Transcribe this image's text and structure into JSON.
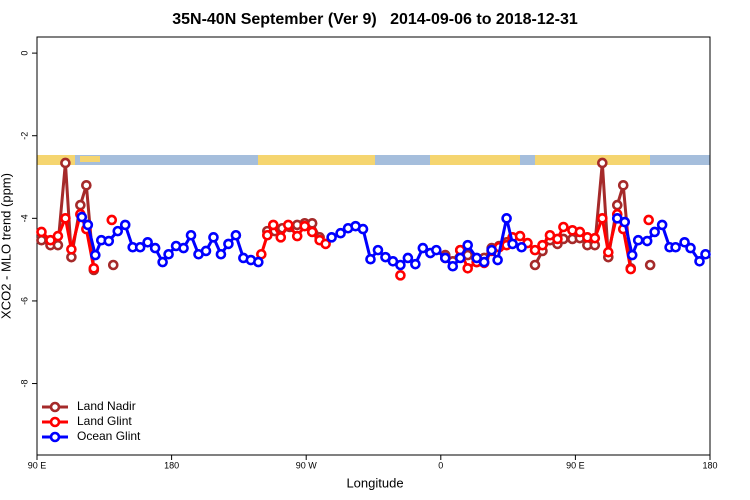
{
  "chart_data": {
    "type": "line",
    "title": "35N-40N September (Ver 9)   2014-09-06 to 2018-12-31",
    "xlabel": "Longitude",
    "ylabel": "XCO2 - MLO trend (ppm)",
    "xlim": [
      90,
      540
    ],
    "xticks": [
      {
        "value": 90,
        "label": "90 E"
      },
      180,
      {
        "value": 270,
        "label": "90 W"
      },
      {
        "value": 360,
        "label": "0"
      },
      {
        "value": 450,
        "label": "90 E"
      },
      {
        "value": 540,
        "label": "180"
      }
    ],
    "ylim": [
      -9.73,
      0.39
    ],
    "yticks": [
      0,
      -2,
      -4,
      -6,
      -8
    ],
    "legend": "lower left",
    "series": [
      {
        "name": "Land Nadir",
        "color": "#a52a2a",
        "x": [
          93,
          99,
          104,
          109,
          113,
          119,
          123,
          128,
          null,
          141,
          null,
          244,
          249,
          254,
          259,
          264,
          269,
          274,
          279,
          null,
          363,
          368,
          373,
          378,
          384,
          389,
          394,
          399,
          404,
          null,
          423,
          428,
          433,
          438,
          442,
          448,
          453,
          458,
          463,
          468,
          472,
          478,
          482,
          487,
          null,
          500
        ],
        "values": [
          -4.53,
          -4.65,
          -4.65,
          -2.66,
          -4.94,
          -3.68,
          -3.2,
          -5.25,
          null,
          -5.13,
          null,
          -4.31,
          -4.31,
          -4.24,
          -4.21,
          -4.16,
          -4.12,
          -4.12,
          -4.46,
          null,
          -4.89,
          -5.04,
          -4.77,
          -4.89,
          -5.06,
          -4.96,
          -4.72,
          -4.67,
          -4.58,
          null,
          -5.13,
          -4.79,
          -4.53,
          -4.62,
          -4.5,
          -4.5,
          -4.48,
          -4.65,
          -4.65,
          -2.66,
          -4.94,
          -3.68,
          -3.2,
          -5.21,
          null,
          -5.13
        ]
      },
      {
        "name": "Land Glint",
        "color": "#ff0000",
        "x": [
          93,
          99,
          104,
          109,
          113,
          119,
          123,
          128,
          null,
          140,
          null,
          240,
          244,
          248,
          253,
          258,
          264,
          269,
          274,
          279,
          283,
          null,
          333,
          null,
          363,
          null,
          373,
          378,
          384,
          389,
          394,
          399,
          404,
          408,
          413,
          418,
          423,
          428,
          433,
          438,
          442,
          448,
          453,
          458,
          463,
          468,
          472,
          478,
          482,
          487,
          null,
          499
        ],
        "values": [
          -4.33,
          -4.53,
          -4.43,
          -4.0,
          -4.75,
          -3.9,
          -4.26,
          -5.21,
          null,
          -4.04,
          null,
          -4.87,
          -4.41,
          -4.16,
          -4.46,
          -4.16,
          -4.43,
          -4.19,
          -4.33,
          -4.53,
          -4.62,
          null,
          -5.38,
          null,
          -4.96,
          null,
          -4.77,
          -5.21,
          -5.06,
          -5.08,
          -4.79,
          -4.7,
          -4.65,
          -4.46,
          -4.43,
          -4.6,
          -4.77,
          -4.65,
          -4.41,
          -4.5,
          -4.21,
          -4.29,
          -4.33,
          -4.46,
          -4.48,
          -4.0,
          -4.82,
          -3.9,
          -4.26,
          -5.23,
          null,
          -4.04
        ]
      },
      {
        "name": "Ocean Glint",
        "color": "#0000ff",
        "x": [
          120,
          124,
          129,
          133,
          138,
          144,
          149,
          154,
          159,
          164,
          169,
          174,
          178,
          183,
          188,
          193,
          198,
          203,
          208,
          213,
          218,
          223,
          228,
          233,
          238,
          null,
          287,
          293,
          298,
          303,
          308,
          313,
          318,
          323,
          328,
          333,
          338,
          343,
          348,
          353,
          357,
          363,
          368,
          373,
          378,
          384,
          389,
          394,
          398,
          404,
          408,
          414,
          null,
          478,
          483,
          488,
          492,
          498,
          503,
          508,
          513,
          517,
          523,
          527,
          533,
          537
        ],
        "values": [
          -3.97,
          -4.16,
          -4.89,
          -4.53,
          -4.55,
          -4.31,
          -4.16,
          -4.7,
          -4.7,
          -4.58,
          -4.72,
          -5.06,
          -4.87,
          -4.67,
          -4.72,
          -4.41,
          -4.87,
          -4.79,
          -4.46,
          -4.87,
          -4.62,
          -4.41,
          -4.96,
          -5.01,
          -5.06,
          null,
          -4.46,
          -4.36,
          -4.24,
          -4.19,
          -4.26,
          -4.99,
          -4.77,
          -4.94,
          -5.04,
          -5.13,
          -4.96,
          -5.11,
          -4.72,
          -4.84,
          -4.77,
          -4.96,
          -5.16,
          -4.96,
          -4.65,
          -4.96,
          -5.06,
          -4.77,
          -5.01,
          -4.0,
          -4.62,
          -4.7,
          null,
          -4.0,
          -4.09,
          -4.89,
          -4.53,
          -4.55,
          -4.33,
          -4.16,
          -4.7,
          -4.7,
          -4.58,
          -4.72,
          -5.04,
          -4.87
        ]
      }
    ]
  }
}
